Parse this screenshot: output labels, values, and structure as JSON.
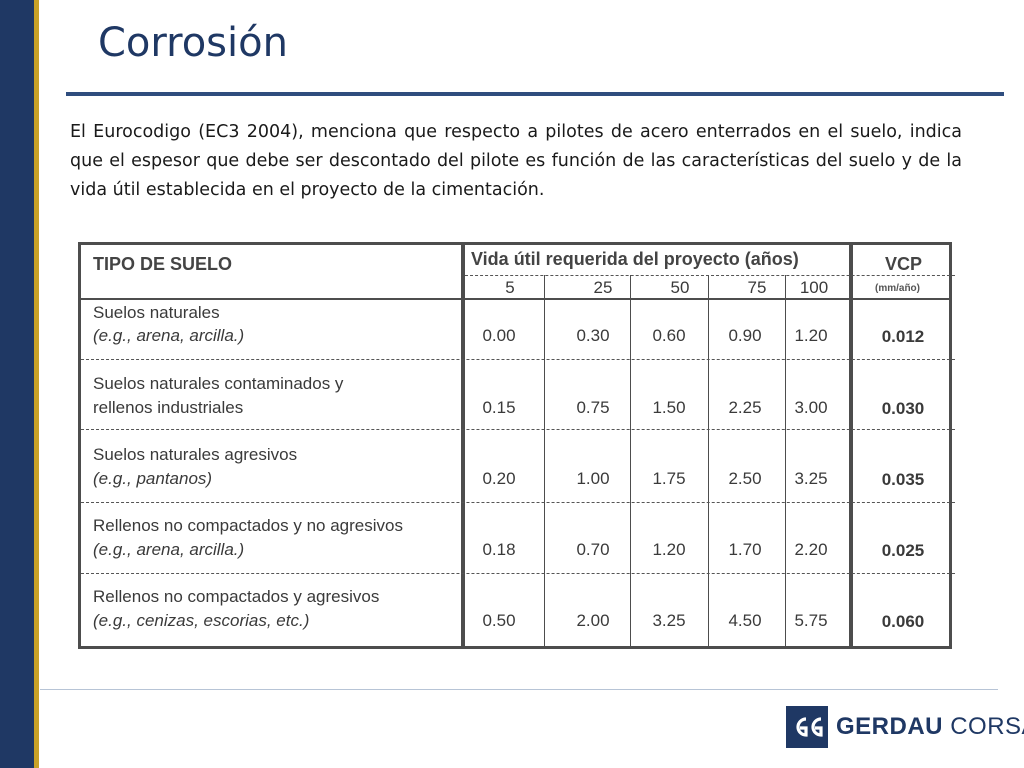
{
  "slide": {
    "title": "Corrosión",
    "intro": "El Eurocodigo (EC3  2004), menciona que respecto a pilotes de acero enterrados en el suelo, indica que el espesor que debe ser descontado del pilote es función de las características del suelo y de la vida útil establecida en el proyecto de la cimentación."
  },
  "table": {
    "col_soil_header": "TIPO DE SUELO",
    "col_life_header": "Vida útil requerida del proyecto (años)",
    "col_vcp_header": "VCP",
    "col_vcp_unit": "(mm/año)",
    "years": [
      "5",
      "25",
      "50",
      "75",
      "100"
    ],
    "rows": [
      {
        "line1": "Suelos naturales",
        "line2": "(e.g., arena, arcilla.)",
        "line2_italic": true,
        "values": [
          "0.00",
          "0.30",
          "0.60",
          "0.90",
          "1.20"
        ],
        "vcp": "0.012"
      },
      {
        "line1": "Suelos naturales contaminados y",
        "line2": "rellenos industriales",
        "line2_italic": false,
        "values": [
          "0.15",
          "0.75",
          "1.50",
          "2.25",
          "3.00"
        ],
        "vcp": "0.030"
      },
      {
        "line1": "Suelos naturales  agresivos",
        "line2": "(e.g., pantanos)",
        "line2_italic": true,
        "values": [
          "0.20",
          "1.00",
          "1.75",
          "2.50",
          "3.25"
        ],
        "vcp": "0.035"
      },
      {
        "line1": "Rellenos no compactados y no agresivos",
        "line2": "(e.g., arena, arcilla.)",
        "line2_italic": true,
        "values": [
          "0.18",
          "0.70",
          "1.20",
          "1.70",
          "2.20"
        ],
        "vcp": "0.025"
      },
      {
        "line1": "Rellenos no compactados y agresivos",
        "line2": "(e.g., cenizas, escorias, etc.)",
        "line2_italic": true,
        "values": [
          "0.50",
          "2.00",
          "3.25",
          "4.50",
          "5.75"
        ],
        "vcp": "0.060"
      }
    ]
  },
  "logo": {
    "brand_bold": "GERDAU",
    "brand_light": "CORSA",
    "mark": "GG",
    "color": "#1f3864"
  },
  "colors": {
    "accent_navy": "#1f3864",
    "accent_gold": "#c9a227"
  }
}
